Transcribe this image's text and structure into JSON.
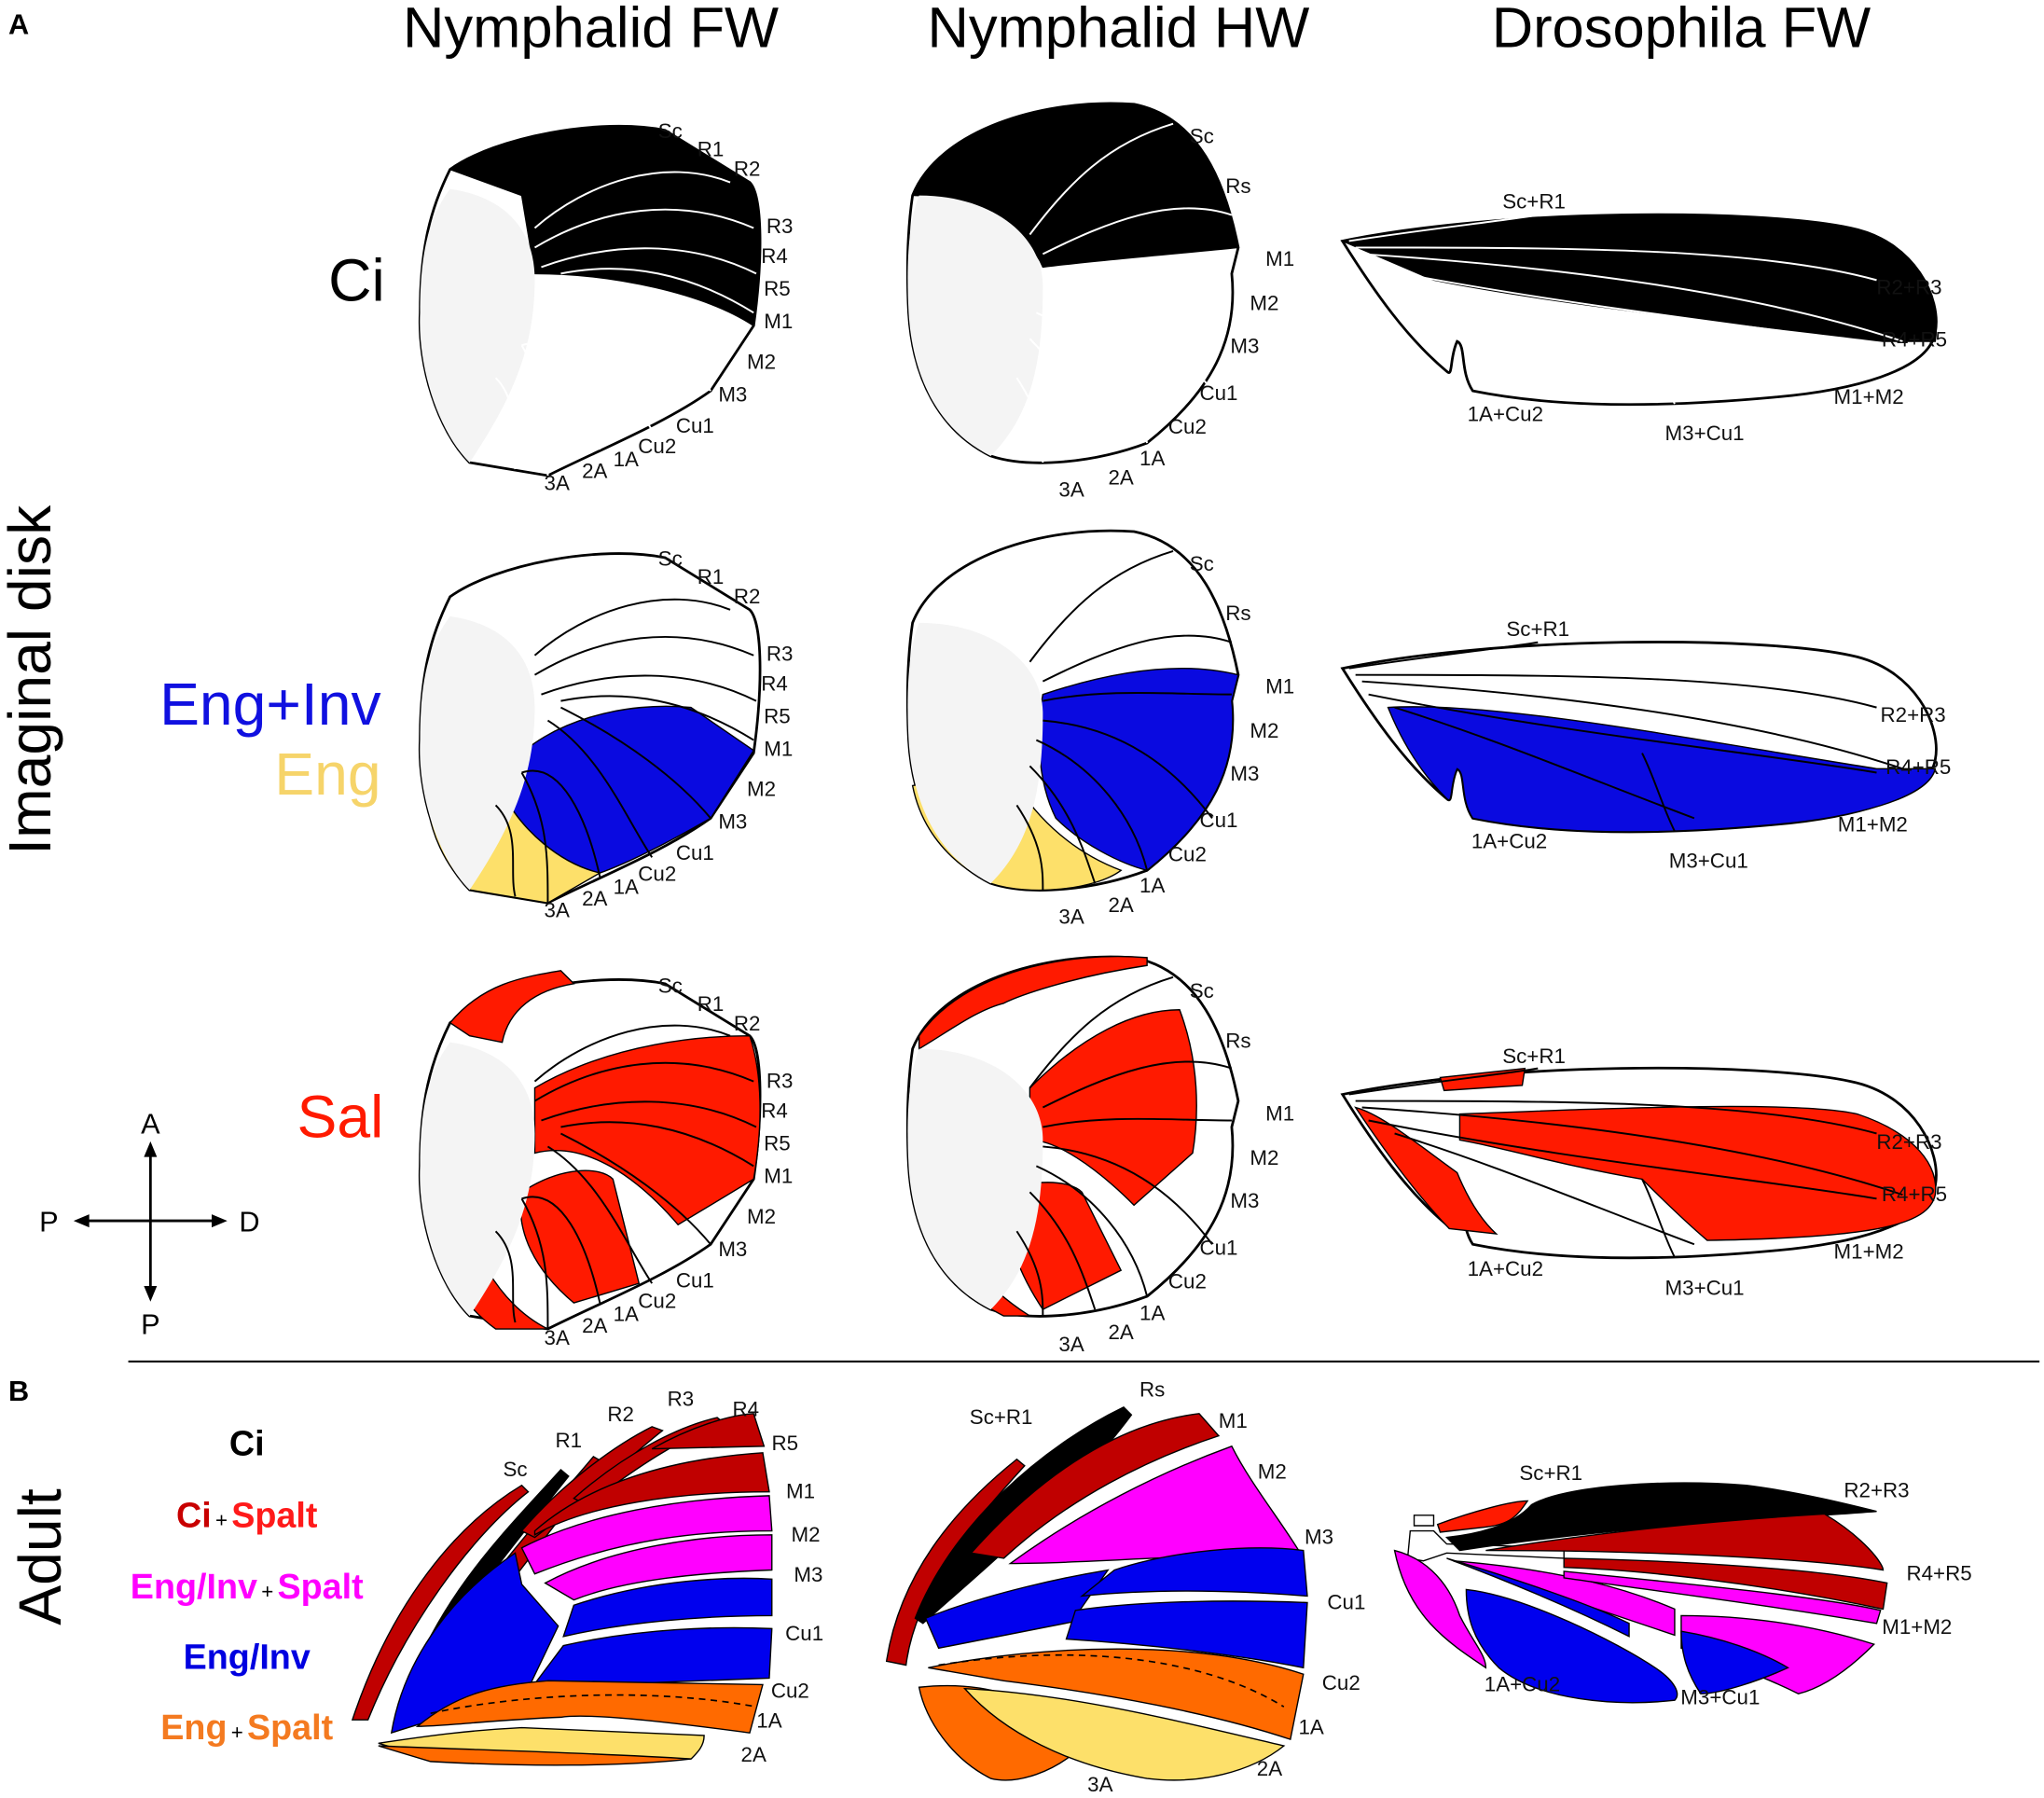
{
  "panel_letters": {
    "a": "A",
    "b": "B"
  },
  "column_headers": [
    "Nymphalid FW",
    "Nymphalid HW",
    "Drosophila FW"
  ],
  "side_labels": {
    "imaginal": "Imaginal disk",
    "adult": "Adult"
  },
  "rows": [
    {
      "gene": "Ci",
      "color": "#000000"
    },
    {
      "gene": "Eng+Inv",
      "color": "#1010e0",
      "gene2": "Eng",
      "color2": "#f6d46a"
    },
    {
      "gene": "Sal",
      "color": "#ff1a00"
    }
  ],
  "compass": {
    "top": "A",
    "bottom": "P",
    "left": "P",
    "right": "D"
  },
  "vein_labels": {
    "nymphalid_fw": [
      "Sc",
      "R1",
      "R2",
      "R3",
      "R4",
      "R5",
      "M1",
      "M2",
      "M3",
      "Cu1",
      "Cu2",
      "1A",
      "2A",
      "3A"
    ],
    "nymphalid_hw": [
      "Sc",
      "Rs",
      "M1",
      "M2",
      "M3",
      "Cu1",
      "Cu2",
      "1A",
      "2A",
      "3A"
    ],
    "drosophila_fw": [
      "Sc+R1",
      "R2+R3",
      "R4+R5",
      "M1+M2",
      "M3+Cu1",
      "1A+Cu2"
    ]
  },
  "adult_labels": {
    "nymphalid_fw": [
      "Sc",
      "R1",
      "R2",
      "R3",
      "R4",
      "R5",
      "M1",
      "M2",
      "M3",
      "Cu1",
      "Cu2",
      "1A",
      "2A"
    ],
    "nymphalid_hw": [
      "Sc+R1",
      "Rs",
      "M1",
      "M2",
      "M3",
      "Cu1",
      "Cu2",
      "1A",
      "2A",
      "3A"
    ],
    "drosophila_fw": [
      "Sc+R1",
      "R2+R3",
      "R4+R5",
      "M1+M2",
      "M3+Cu1",
      "1A+Cu2"
    ]
  },
  "legend": [
    {
      "parts": [
        "Ci"
      ],
      "colors": [
        "#000000"
      ]
    },
    {
      "parts": [
        "Ci",
        "+",
        "Spalt"
      ],
      "colors": [
        "#c80000",
        "#000000",
        "#ff1a1a"
      ]
    },
    {
      "parts": [
        "Eng/Inv",
        "+",
        "Spalt"
      ],
      "colors": [
        "#ff00ff",
        "#000000",
        "#ff00ff"
      ]
    },
    {
      "parts": [
        "Eng/Inv"
      ],
      "colors": [
        "#0000e0"
      ]
    },
    {
      "parts": [
        "Eng",
        "+",
        "Spalt"
      ],
      "colors": [
        "#f47a20",
        "#000000",
        "#f47a20"
      ]
    }
  ],
  "colors": {
    "ci": "#000000",
    "ci_spalt": "#c00000",
    "eng_inv_spalt": "#ff00ff",
    "eng_inv": "#0000ee",
    "eng_spalt": "#ff6a00",
    "eng": "#fde06a",
    "sal": "#ff1a00",
    "eng_inv_disk": "#0a0ae0"
  }
}
